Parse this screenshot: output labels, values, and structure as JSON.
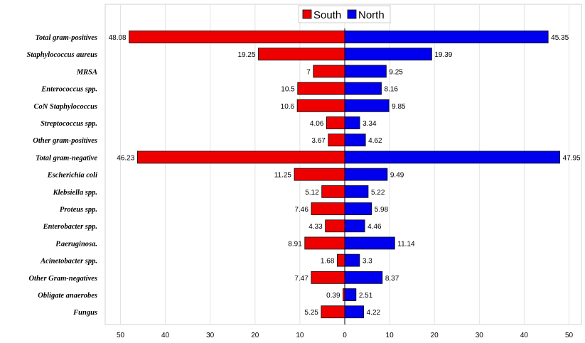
{
  "chart_data": {
    "type": "bar",
    "orientation": "horizontal-diverging",
    "categories": [
      "Total gram-positives",
      "Staphylococcus aureus",
      "MRSA",
      "Enterococcus spp.",
      "CoN Staphylococcus",
      "Streptococcus spp.",
      "Other gram-positives",
      "Total gram-negative",
      "Escherichia coli",
      "Klebsiella spp.",
      "Proteus spp.",
      "Enterobacter spp.",
      "P.aeruginosa.",
      "Acinetobacter spp.",
      "Other Gram-negatives",
      "Obligate anaerobes",
      "Fungus"
    ],
    "series": [
      {
        "name": "South",
        "color": "#ee0000",
        "direction": "left",
        "values": [
          48.08,
          19.25,
          7,
          10.5,
          10.6,
          4.06,
          3.67,
          46.23,
          11.25,
          5.12,
          7.46,
          4.33,
          8.91,
          1.68,
          7.47,
          0.39,
          5.25
        ]
      },
      {
        "name": "North",
        "color": "#0000ee",
        "direction": "right",
        "values": [
          45.35,
          19.39,
          9.25,
          8.16,
          9.85,
          3.34,
          4.62,
          47.95,
          9.49,
          5.22,
          5.98,
          4.46,
          11.14,
          3.3,
          8.37,
          2.51,
          4.22
        ]
      }
    ],
    "xlim": [
      -53,
      53
    ],
    "xticks": [
      -50,
      -40,
      -30,
      -20,
      -10,
      0,
      10,
      20,
      30,
      40,
      50
    ],
    "xtick_labels": [
      "50",
      "40",
      "30",
      "20",
      "10",
      "0",
      "10",
      "20",
      "30",
      "40",
      "50"
    ],
    "grid": "vertical",
    "legend_position": "top-center",
    "title": "",
    "xlabel": "",
    "ylabel": ""
  }
}
